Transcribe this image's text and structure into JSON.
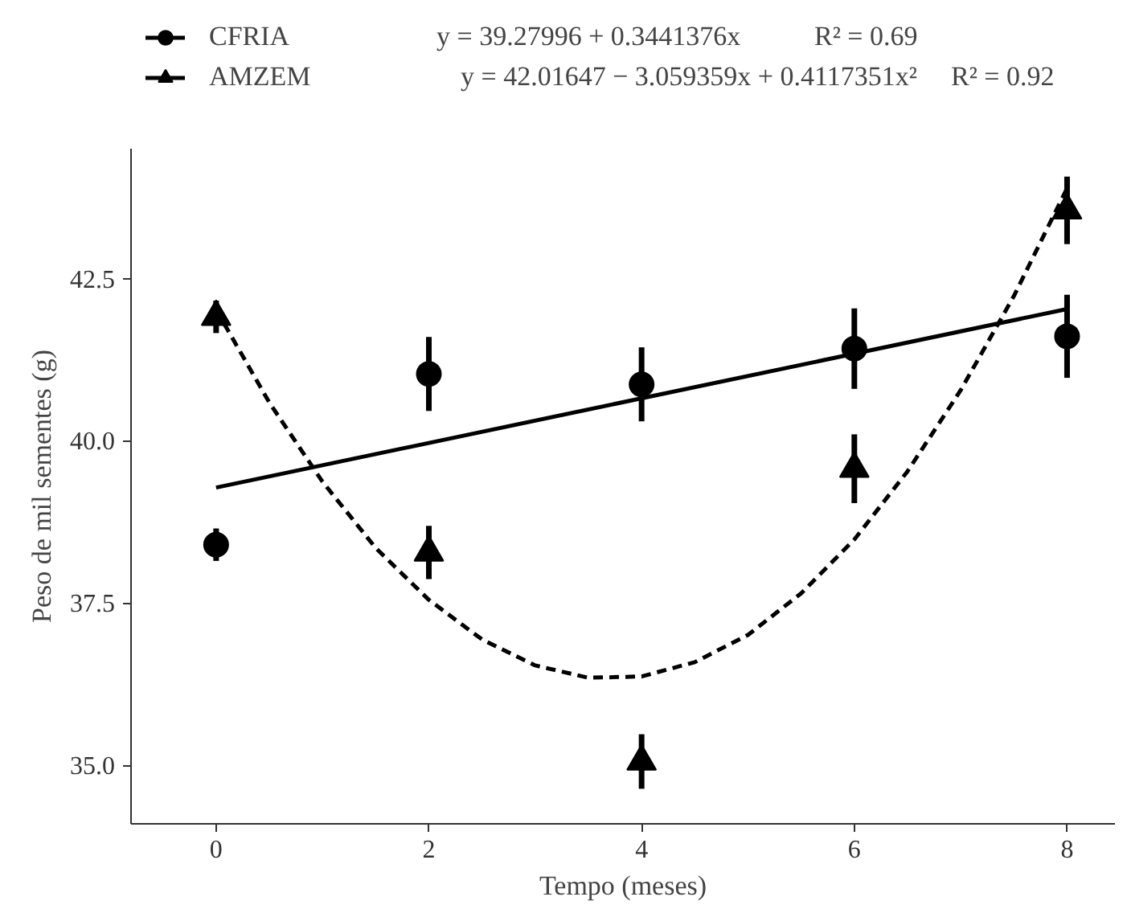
{
  "chart_data": {
    "type": "scatter",
    "xlabel": "Tempo (meses)",
    "ylabel": "Peso de mil sementes (g)",
    "xlim": [
      -0.8,
      8.45
    ],
    "ylim": [
      34.1,
      44.5
    ],
    "xticks": [
      0,
      2,
      4,
      6,
      8
    ],
    "yticks": [
      {
        "value": 35,
        "label": "35.0"
      },
      {
        "value": 37.5,
        "label": "37.5"
      },
      {
        "value": 40,
        "label": "40.0"
      },
      {
        "value": 42.5,
        "label": "42.5"
      }
    ],
    "grid": false,
    "legend": "top left",
    "annotations": [
      "y = 39.27996 + 0.3441376x",
      "R² = 0.69",
      "y = 42.01647 − 3.059359x + 0.4117351x²",
      "R² = 0.92"
    ],
    "series": [
      {
        "name": "CFRIA",
        "marker": "circle",
        "color": "#000000",
        "x": [
          0,
          2,
          4,
          6,
          8
        ],
        "values": [
          38.4,
          41.03,
          40.87,
          41.42,
          41.61
        ],
        "errors": [
          0.25,
          0.57,
          0.57,
          0.62,
          0.64
        ]
      },
      {
        "name": "AMZEM",
        "marker": "triangle",
        "color": "#000000",
        "x": [
          0,
          2,
          4,
          6,
          8
        ],
        "values": [
          41.91,
          38.28,
          35.06,
          39.57,
          43.55
        ],
        "errors": [
          0.25,
          0.41,
          0.42,
          0.53,
          0.52
        ]
      },
      {
        "type": "line",
        "line_style": "solid",
        "color": "#000000",
        "x": [
          0,
          8
        ],
        "values": [
          39.28,
          42.03
        ]
      },
      {
        "type": "line",
        "line_style": "dashed",
        "color": "#000000",
        "x": [
          0,
          0.5,
          1,
          1.5,
          2,
          2.5,
          3,
          3.5,
          4,
          4.5,
          5,
          5.5,
          6,
          6.5,
          7,
          7.5,
          8
        ],
        "values": [
          42.02,
          40.59,
          39.37,
          38.35,
          37.55,
          36.94,
          36.54,
          36.35,
          36.37,
          36.59,
          37.01,
          37.65,
          38.48,
          39.53,
          40.78,
          42.23,
          43.89
        ]
      }
    ]
  }
}
